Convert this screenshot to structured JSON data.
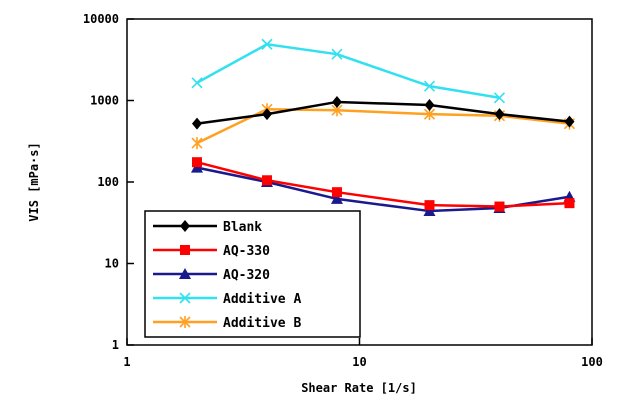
{
  "chart_data": {
    "type": "line",
    "xlabel": "Shear Rate [1/s]",
    "ylabel": "VIS [mPa·s]",
    "xscale": "log",
    "yscale": "log",
    "xlim": [
      1,
      100
    ],
    "ylim": [
      1,
      10000
    ],
    "xticks": [
      "1",
      "10",
      "100"
    ],
    "yticks": [
      "1",
      "10",
      "100",
      "1000",
      "10000"
    ],
    "grid": false,
    "legend_position": "bottom-left",
    "series": [
      {
        "name": "Blank",
        "color": "#000000",
        "marker": "diamond",
        "x": [
          2,
          4,
          8,
          20,
          40,
          80
        ],
        "y": [
          520,
          680,
          960,
          880,
          680,
          550
        ]
      },
      {
        "name": "AQ-330",
        "color": "#ff0000",
        "marker": "square",
        "x": [
          2,
          4,
          8,
          20,
          40,
          80
        ],
        "y": [
          175,
          105,
          75,
          52,
          50,
          55
        ]
      },
      {
        "name": "AQ-320",
        "color": "#1a1a8c",
        "marker": "triangle",
        "x": [
          2,
          4,
          8,
          20,
          40,
          80
        ],
        "y": [
          150,
          100,
          62,
          44,
          48,
          66
        ]
      },
      {
        "name": "Additive A",
        "color": "#33e0f0",
        "marker": "x",
        "x": [
          2,
          4,
          8,
          20,
          40
        ],
        "y": [
          1650,
          4900,
          3700,
          1500,
          1080
        ]
      },
      {
        "name": "Additive B",
        "color": "#ffa020",
        "marker": "asterisk",
        "x": [
          2,
          4,
          8,
          20,
          40,
          80
        ],
        "y": [
          300,
          780,
          760,
          680,
          650,
          520
        ]
      }
    ]
  }
}
